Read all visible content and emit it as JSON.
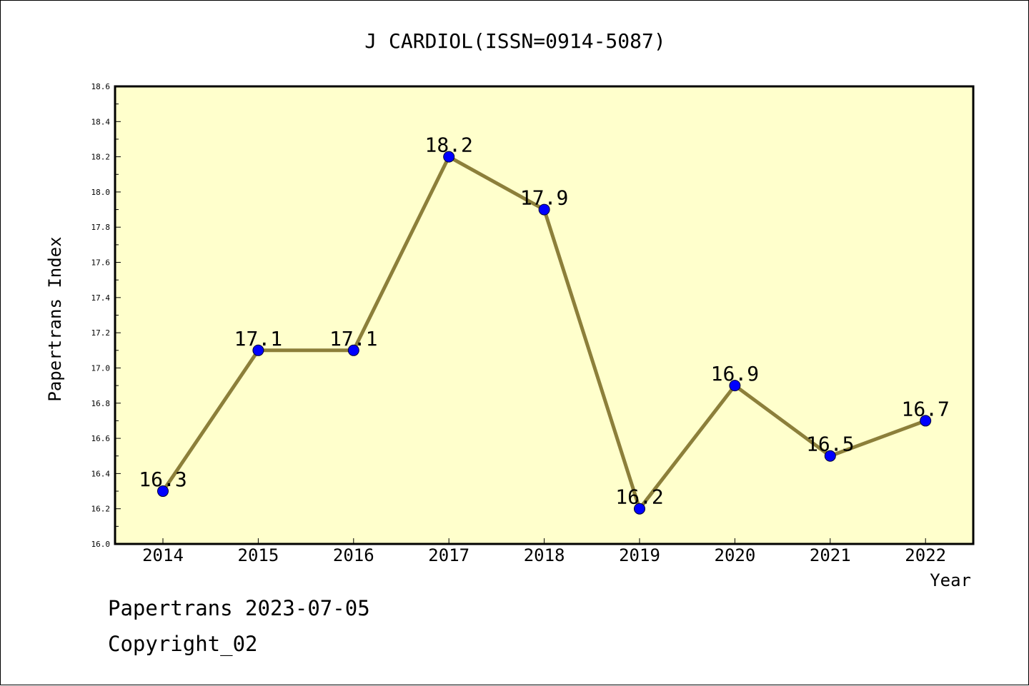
{
  "chart_data": {
    "type": "line",
    "title": "J CARDIOL(ISSN=0914-5087)",
    "xlabel": "Year",
    "ylabel": "Papertrans Index",
    "categories": [
      "2014",
      "2015",
      "2016",
      "2017",
      "2018",
      "2019",
      "2020",
      "2021",
      "2022"
    ],
    "values": [
      16.3,
      17.1,
      17.1,
      18.2,
      17.9,
      16.2,
      16.9,
      16.5,
      16.7
    ],
    "data_labels": [
      "16.3",
      "17.1",
      "17.1",
      "18.2",
      "17.9",
      "16.2",
      "16.9",
      "16.5",
      "16.7"
    ],
    "ylim": [
      16.0,
      18.6
    ],
    "yticks": [
      "16.0",
      "16.2",
      "16.4",
      "16.6",
      "16.8",
      "17.0",
      "17.2",
      "17.4",
      "17.6",
      "17.8",
      "18.0",
      "18.2",
      "18.4",
      "18.6"
    ],
    "grid": false,
    "colors": {
      "plot_background": "#ffffcc",
      "line": "#8c7f3a",
      "marker": "#0000ff"
    }
  },
  "footer": {
    "line1": "Papertrans 2023-07-05",
    "line2": "Copyright_02"
  }
}
